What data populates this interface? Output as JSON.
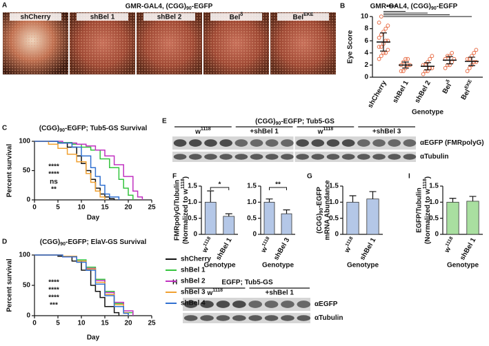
{
  "panel_A": {
    "letter": "A",
    "title": [
      {
        "text": "GMR-GAL4, (CGG)"
      },
      {
        "text": "90",
        "shift": "sub"
      },
      {
        "text": "-EGFP"
      }
    ],
    "images": [
      "shCherry",
      "shBel 1",
      "shBel 2",
      [
        {
          "text": "Bel"
        },
        {
          "text": "δ",
          "shift": "super"
        }
      ],
      [
        {
          "text": "Bel"
        },
        {
          "text": "EKE",
          "shift": "super"
        }
      ]
    ]
  },
  "panel_E": {
    "letter": "E",
    "title": [
      {
        "text": "(CGG)"
      },
      {
        "text": "90",
        "shift": "sub"
      },
      {
        "text": "-EGFP; Tub5-GS"
      }
    ],
    "lanes": [
      [
        {
          "text": "w"
        },
        {
          "text": "1118",
          "shift": "super"
        }
      ],
      "+shBel 1",
      [
        {
          "text": "w"
        },
        {
          "text": "1118",
          "shift": "super"
        }
      ],
      "+shBel 3"
    ],
    "blots": [
      "αEGFP (FMRpolyG)",
      "αTubulin"
    ]
  },
  "panel_H": {
    "letter": "H",
    "title": "EGFP; Tub5-GS",
    "lanes": [
      [
        {
          "text": "w"
        },
        {
          "text": "1118",
          "shift": "super"
        }
      ],
      "+shBel 1"
    ],
    "blots": [
      "αEGFP",
      "αTubulin"
    ]
  },
  "chart_data": [
    {
      "type": "dot",
      "letter": "B",
      "title": [
        {
          "text": "GMR-GAL4, (CGG)"
        },
        {
          "text": "90",
          "shift": "sub"
        },
        {
          "text": "-EGFP"
        }
      ],
      "ylabel": [
        "Eye Score"
      ],
      "xlabel": "Genotype",
      "categories": [
        "shCherry",
        "shBel 1",
        "shBel 2",
        [
          {
            "text": "Bel"
          },
          {
            "text": "δ",
            "shift": "super"
          }
        ],
        [
          {
            "text": "Bel"
          },
          {
            "text": "EKE",
            "shift": "super"
          }
        ]
      ],
      "points": [
        [
          3,
          3.5,
          4,
          4,
          4.5,
          5,
          5,
          5.5,
          6,
          6,
          6.5,
          7,
          7.5,
          8,
          8.5,
          9,
          10
        ],
        [
          1,
          1,
          1.5,
          2,
          2,
          2,
          2.5,
          3,
          3
        ],
        [
          0.5,
          1,
          1,
          1.5,
          1.5,
          2,
          2,
          2.5,
          3,
          3.5
        ],
        [
          1.5,
          2,
          2,
          2.5,
          3,
          3,
          3.5,
          3.5,
          4
        ],
        [
          1,
          1.5,
          2,
          2.5,
          2.5,
          3,
          3,
          3.5,
          4,
          4.5
        ]
      ],
      "values": [
        5.8,
        2,
        1.8,
        2.8,
        2.6
      ],
      "errors": [
        1.5,
        0.5,
        0.6,
        0.6,
        0.7
      ],
      "color": "#e8704a",
      "ylim": [
        0,
        10
      ],
      "yticks": [
        0,
        2,
        4,
        6,
        8,
        10
      ],
      "annotations": [
        {
          "text": "****",
          "color": "#111111"
        }
      ]
    },
    {
      "type": "line",
      "letter": "C",
      "title": [
        {
          "text": "(CGG)"
        },
        {
          "text": "90",
          "shift": "sub"
        },
        {
          "text": "-EGFP; Tub5-GS Survival"
        }
      ],
      "ylabel": [
        "Percent survival"
      ],
      "xlabel": "Day",
      "xlim": [
        0,
        25
      ],
      "xticks": [
        0,
        5,
        10,
        15,
        20,
        25
      ],
      "ylim": [
        0,
        100
      ],
      "yticks": [
        0,
        50,
        100
      ],
      "series": [
        {
          "color": "#111111",
          "x": [
            0,
            5,
            7,
            9,
            10,
            11,
            12,
            13,
            14,
            15,
            16,
            17
          ],
          "values": [
            100,
            97,
            90,
            75,
            62,
            50,
            35,
            20,
            10,
            5,
            2,
            0
          ]
        },
        {
          "color": "#33c43c",
          "x": [
            0,
            5,
            8,
            10,
            12,
            14,
            16,
            18,
            19,
            20,
            21
          ],
          "values": [
            100,
            98,
            95,
            90,
            85,
            70,
            55,
            35,
            20,
            8,
            0
          ]
        },
        {
          "color": "#c030c0",
          "x": [
            0,
            6,
            9,
            11,
            13,
            15,
            17,
            19,
            21,
            22,
            23
          ],
          "values": [
            100,
            97,
            95,
            92,
            85,
            75,
            60,
            40,
            15,
            5,
            0
          ]
        },
        {
          "color": "#f0a030",
          "x": [
            0,
            3,
            5,
            7,
            9,
            11,
            12,
            13,
            14,
            15
          ],
          "values": [
            100,
            95,
            88,
            78,
            65,
            45,
            30,
            15,
            5,
            0
          ]
        },
        {
          "color": "#3070d0",
          "x": [
            0,
            5,
            8,
            10,
            12,
            13,
            14,
            15,
            16,
            18
          ],
          "values": [
            100,
            97,
            90,
            75,
            55,
            40,
            25,
            10,
            5,
            0
          ]
        }
      ],
      "annotations": [
        {
          "text": "****",
          "color": "#33c43c"
        },
        {
          "text": "****",
          "color": "#c030c0"
        },
        {
          "text": "ns",
          "color": "#f0a030"
        },
        {
          "text": "**",
          "color": "#3070d0"
        }
      ]
    },
    {
      "type": "line",
      "letter": "D",
      "title": [
        {
          "text": "(CGG)"
        },
        {
          "text": "90",
          "shift": "sub"
        },
        {
          "text": "-EGFP; ElaV-GS Survival"
        }
      ],
      "ylabel": [
        "Percent survival"
      ],
      "xlabel": "Day",
      "legend": "right",
      "xlim": [
        0,
        25
      ],
      "xticks": [
        0,
        5,
        10,
        15,
        20,
        25
      ],
      "ylim": [
        0,
        100
      ],
      "yticks": [
        0,
        50,
        100
      ],
      "series": [
        {
          "name": "shCherry",
          "color": "#111111",
          "x": [
            0,
            5,
            8,
            10,
            12,
            13,
            14,
            15,
            17,
            18
          ],
          "values": [
            100,
            98,
            90,
            75,
            50,
            40,
            30,
            15,
            5,
            0
          ]
        },
        {
          "name": "shBel 1",
          "color": "#33c43c",
          "x": [
            0,
            6,
            9,
            11,
            13,
            15,
            17,
            19,
            21
          ],
          "values": [
            100,
            98,
            92,
            80,
            60,
            40,
            20,
            5,
            0
          ]
        },
        {
          "name": "shBel 2",
          "color": "#c030c0",
          "x": [
            0,
            6,
            9,
            11,
            13,
            15,
            17,
            19,
            21
          ],
          "values": [
            100,
            97,
            90,
            78,
            58,
            38,
            22,
            8,
            0
          ]
        },
        {
          "name": "shBel 3",
          "color": "#f0a030",
          "x": [
            0,
            6,
            9,
            11,
            13,
            15,
            17,
            19,
            20
          ],
          "values": [
            100,
            98,
            90,
            77,
            55,
            35,
            18,
            5,
            0
          ]
        },
        {
          "name": "shBel 4",
          "color": "#3070d0",
          "x": [
            0,
            6,
            9,
            11,
            13,
            15,
            17,
            19,
            20
          ],
          "values": [
            100,
            97,
            88,
            75,
            52,
            33,
            15,
            4,
            0
          ]
        }
      ],
      "annotations": [
        {
          "text": "****",
          "color": "#33c43c"
        },
        {
          "text": "****",
          "color": "#c030c0"
        },
        {
          "text": "****",
          "color": "#f0a030"
        },
        {
          "text": "***",
          "color": "#3070d0"
        }
      ]
    },
    {
      "type": "bar",
      "letter": "F",
      "ylabel": [
        "FMRpolyG/Tubulin",
        [
          {
            "text": "(Normalized to w"
          },
          {
            "text": "1118",
            "shift": "super"
          },
          {
            "text": ")"
          }
        ]
      ],
      "xlabel": "Genotype",
      "categories": [
        [
          {
            "text": "w"
          },
          {
            "text": "1118",
            "shift": "super"
          }
        ],
        "shBel 1"
      ],
      "values": [
        1.0,
        0.56
      ],
      "errors": [
        0.35,
        0.08
      ],
      "color": "#b4c7e7",
      "ylim": [
        0,
        1.5
      ],
      "yticks": [
        0,
        0.5,
        {
          "value": 1,
          "label": "1.0"
        },
        1.5
      ],
      "annotations": [
        {
          "text": "*",
          "color": "#111111"
        }
      ]
    },
    {
      "type": "bar",
      "xlabel": "Genotype",
      "categories": [
        [
          {
            "text": "w"
          },
          {
            "text": "1118",
            "shift": "super"
          }
        ],
        "shBel 3"
      ],
      "values": [
        1.0,
        0.64
      ],
      "errors": [
        0.1,
        0.12
      ],
      "color": "#b4c7e7",
      "ylim": [
        0,
        1.5
      ],
      "yticks": [
        0,
        0.5,
        {
          "value": 1,
          "label": "1.0"
        },
        1.5
      ],
      "annotations": [
        {
          "text": "**",
          "color": "#111111"
        }
      ]
    },
    {
      "type": "bar",
      "letter": "G",
      "ylabel": [
        [
          {
            "text": "(CGG)"
          },
          {
            "text": "90",
            "shift": "sub"
          },
          {
            "text": "-EGFP"
          }
        ],
        "mRNA Abundance"
      ],
      "xlabel": "Genotype",
      "categories": [
        [
          {
            "text": "w"
          },
          {
            "text": "1118",
            "shift": "super"
          }
        ],
        "shBel 1"
      ],
      "values": [
        1.0,
        1.1
      ],
      "errors": [
        0.2,
        0.23
      ],
      "color": "#b4c7e7",
      "ylim": [
        0,
        1.5
      ],
      "yticks": [
        0,
        0.5,
        {
          "value": 1,
          "label": "1.0"
        },
        1.5
      ]
    },
    {
      "type": "bar",
      "letter": "I",
      "ylabel": [
        "EGFP/Tubulin",
        [
          {
            "text": "(Normalized to w"
          },
          {
            "text": "1118",
            "shift": "super"
          },
          {
            "text": ")"
          }
        ]
      ],
      "xlabel": "Genotype",
      "categories": [
        [
          {
            "text": "w"
          },
          {
            "text": "1118",
            "shift": "super"
          }
        ],
        "shBel 1"
      ],
      "values": [
        1.0,
        1.03
      ],
      "errors": [
        0.12,
        0.15
      ],
      "color": "#a9dfa0",
      "ylim": [
        0,
        1.5
      ],
      "yticks": [
        0,
        0.5,
        {
          "value": 1,
          "label": "1.0"
        },
        1.5
      ]
    }
  ]
}
